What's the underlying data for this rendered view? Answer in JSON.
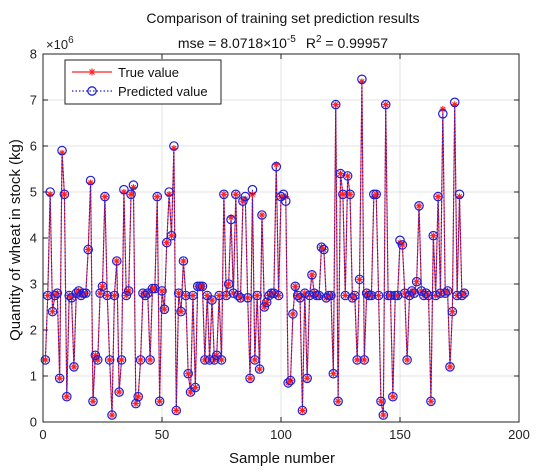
{
  "chart_data": {
    "type": "line",
    "title": "Comparison of training set prediction results",
    "subtitle_parts": {
      "mse_prefix": "mse = 8.0718×10",
      "mse_exp": "-5",
      "r2_prefix": "R",
      "r2_exp": "2",
      "r2_suffix": " = 0.99957"
    },
    "xlabel": "Sample number",
    "ylabel": "Quantity of wheat in stock (kg)",
    "y_multiplier": {
      "base": "×10",
      "exp": "6"
    },
    "xlim": [
      0,
      200
    ],
    "ylim": [
      0,
      8
    ],
    "xticks": [
      0,
      50,
      100,
      150,
      200
    ],
    "yticks": [
      0,
      1,
      2,
      3,
      4,
      5,
      6,
      7,
      8
    ],
    "grid": true,
    "legend_position": "top-left",
    "colors": {
      "true": "#ff2020",
      "pred": "#1f1fd8"
    },
    "series": [
      {
        "name": "True value",
        "marker": "asterisk",
        "line": "solid",
        "values": [
          1.35,
          2.75,
          4.95,
          2.4,
          2.75,
          2.8,
          0.95,
          5.85,
          4.95,
          0.55,
          2.75,
          2.7,
          1.2,
          2.8,
          2.85,
          2.75,
          2.8,
          2.8,
          3.75,
          5.2,
          0.45,
          1.45,
          1.35,
          2.8,
          2.95,
          4.9,
          2.75,
          1.35,
          0.15,
          2.75,
          3.5,
          0.65,
          1.35,
          5.0,
          2.75,
          2.85,
          4.95,
          5.1,
          0.4,
          0.55,
          1.35,
          2.8,
          2.75,
          2.8,
          1.35,
          2.9,
          2.9,
          4.9,
          0.45,
          2.85,
          2.45,
          3.9,
          4.95,
          4.05,
          5.95,
          0.25,
          2.8,
          2.4,
          3.5,
          2.75,
          1.05,
          0.65,
          2.75,
          0.75,
          2.95,
          2.95,
          2.95,
          1.35,
          2.75,
          1.35,
          2.65,
          1.35,
          1.45,
          2.75,
          1.35,
          4.95,
          2.75,
          3.0,
          4.45,
          2.8,
          4.95,
          2.75,
          2.7,
          4.8,
          4.85,
          2.7,
          0.95,
          4.95,
          1.35,
          2.75,
          1.15,
          4.5,
          2.5,
          2.6,
          2.75,
          2.8,
          2.8,
          5.6,
          2.75,
          4.9,
          4.9,
          4.9,
          0.85,
          0.9,
          2.35,
          2.95,
          2.75,
          2.7,
          0.25,
          2.8,
          0.95,
          2.75,
          3.2,
          2.8,
          2.75,
          2.75,
          3.8,
          3.75,
          2.7,
          2.75,
          2.75,
          1.05,
          6.9,
          0.45,
          5.4,
          4.95,
          2.75,
          5.35,
          4.95,
          2.7,
          2.75,
          1.35,
          3.1,
          7.4,
          1.35,
          2.8,
          2.75,
          2.75,
          4.9,
          4.95,
          2.75,
          0.45,
          0.15,
          6.9,
          2.75,
          2.75,
          0.55,
          2.75,
          2.75,
          3.9,
          3.85,
          2.8,
          1.35,
          2.75,
          2.85,
          2.8,
          3.05,
          4.7,
          2.85,
          2.75,
          2.8,
          2.75,
          0.45,
          4.05,
          2.75,
          4.9,
          2.8,
          6.8,
          2.8,
          2.85,
          1.2,
          2.4,
          6.9,
          2.75,
          4.9,
          2.75,
          2.8
        ]
      },
      {
        "name": "Predicted value",
        "marker": "circle",
        "line": "dotted",
        "values": [
          1.35,
          2.75,
          5.0,
          2.4,
          2.75,
          2.8,
          0.95,
          5.9,
          4.95,
          0.55,
          2.75,
          2.7,
          1.2,
          2.8,
          2.85,
          2.75,
          2.8,
          2.8,
          3.75,
          5.25,
          0.45,
          1.45,
          1.35,
          2.8,
          2.95,
          4.9,
          2.75,
          1.35,
          0.15,
          2.75,
          3.5,
          0.65,
          1.35,
          5.05,
          2.75,
          2.85,
          4.95,
          5.15,
          0.4,
          0.55,
          1.35,
          2.8,
          2.75,
          2.8,
          1.35,
          2.9,
          2.9,
          4.9,
          0.45,
          2.85,
          2.45,
          3.9,
          5.0,
          4.05,
          6.0,
          0.25,
          2.8,
          2.4,
          3.5,
          2.75,
          1.05,
          0.65,
          2.75,
          0.75,
          2.95,
          2.95,
          2.95,
          1.35,
          2.75,
          1.35,
          2.65,
          1.35,
          1.45,
          2.75,
          1.35,
          4.95,
          2.75,
          3.0,
          4.4,
          2.8,
          4.95,
          2.75,
          2.7,
          4.8,
          4.9,
          2.7,
          0.95,
          5.05,
          1.35,
          2.75,
          1.15,
          4.5,
          2.5,
          2.6,
          2.75,
          2.8,
          2.8,
          5.55,
          2.75,
          4.9,
          4.95,
          4.8,
          0.85,
          0.9,
          2.35,
          2.95,
          2.75,
          2.7,
          0.25,
          2.8,
          0.95,
          2.75,
          3.2,
          2.8,
          2.75,
          2.75,
          3.8,
          3.75,
          2.7,
          2.75,
          2.75,
          1.05,
          6.9,
          0.45,
          5.4,
          4.95,
          2.75,
          5.35,
          4.95,
          2.7,
          2.75,
          1.35,
          3.1,
          7.45,
          1.35,
          2.8,
          2.75,
          2.75,
          4.95,
          4.95,
          2.75,
          0.45,
          0.15,
          6.9,
          2.75,
          2.75,
          0.55,
          2.75,
          2.75,
          3.95,
          3.85,
          2.8,
          1.35,
          2.75,
          2.85,
          2.8,
          3.05,
          4.7,
          2.85,
          2.75,
          2.8,
          2.75,
          0.45,
          4.05,
          2.75,
          4.9,
          2.8,
          6.7,
          2.8,
          2.85,
          1.2,
          2.4,
          6.95,
          2.75,
          4.95,
          2.75,
          2.8
        ]
      }
    ]
  }
}
